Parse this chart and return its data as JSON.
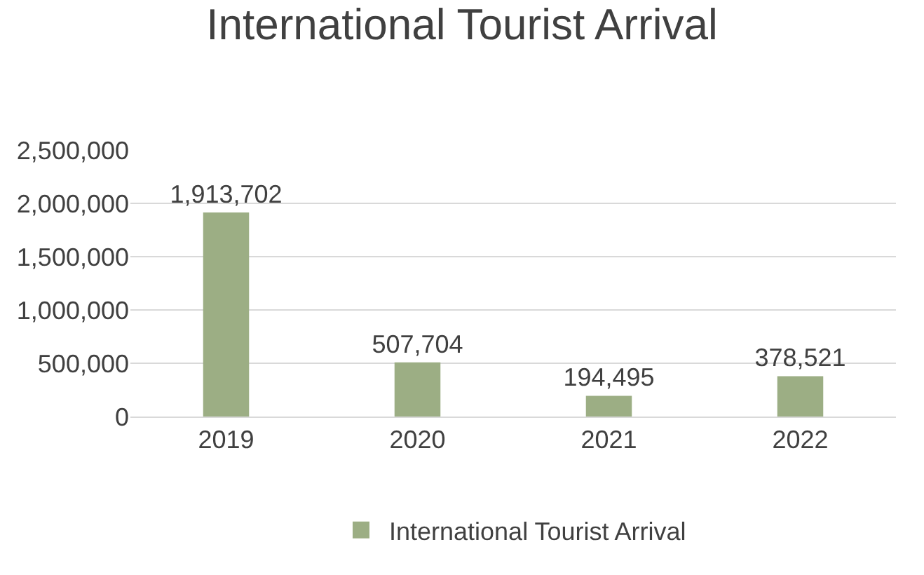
{
  "chart_data": {
    "type": "bar",
    "title": "International Tourist Arrival",
    "categories": [
      "2019",
      "2020",
      "2021",
      "2022"
    ],
    "series": [
      {
        "name": "International Tourist Arrival",
        "color": "#9cae84",
        "values": [
          1913702,
          507704,
          194495,
          378521
        ],
        "value_labels": [
          "1,913,702",
          "507,704",
          "194,495",
          "378,521"
        ]
      }
    ],
    "ylim": [
      0,
      2500000
    ],
    "yticks": [
      {
        "value": 0,
        "label": "0"
      },
      {
        "value": 500000,
        "label": "500,000"
      },
      {
        "value": 1000000,
        "label": "1,000,000"
      },
      {
        "value": 1500000,
        "label": "1,500,000"
      },
      {
        "value": 2000000,
        "label": "2,000,000"
      },
      {
        "value": 2500000,
        "label": "2,500,000"
      }
    ],
    "grid": "y",
    "legend": "bottom"
  }
}
